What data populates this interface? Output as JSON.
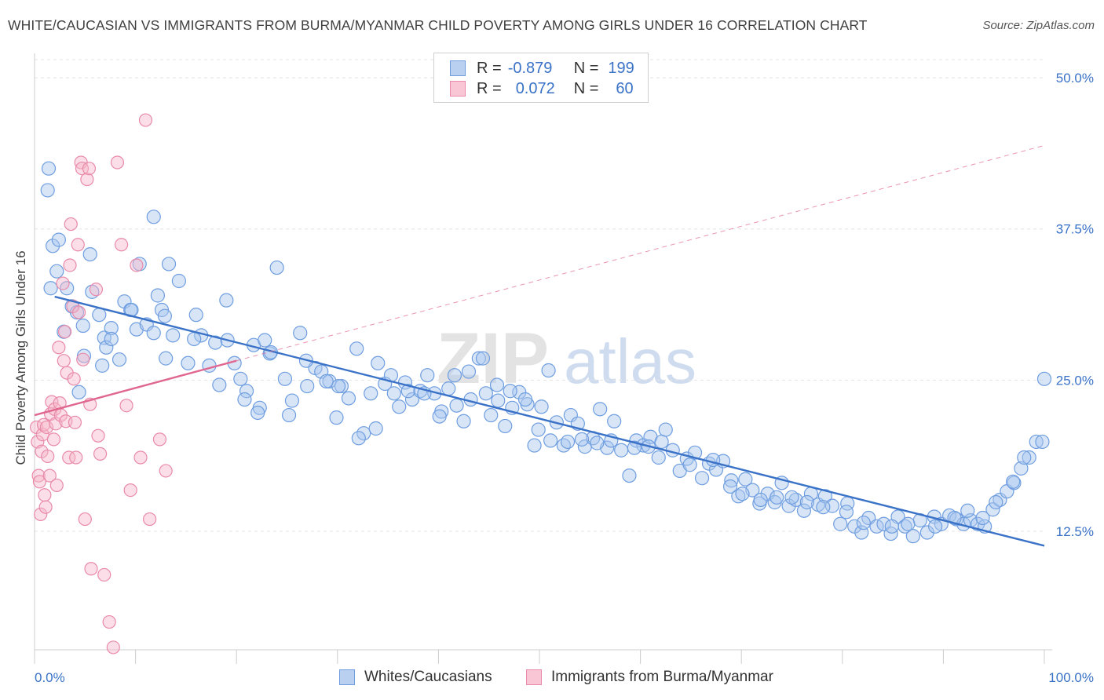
{
  "title": "WHITE/CAUCASIAN VS IMMIGRANTS FROM BURMA/MYANMAR CHILD POVERTY AMONG GIRLS UNDER 16 CORRELATION CHART",
  "source": "Source: ZipAtlas.com",
  "watermark": {
    "zip": "ZIP",
    "atlas": "atlas"
  },
  "legend": {
    "rows": [
      {
        "r_label": "R =",
        "r_value": "-0.879",
        "n_label": "N =",
        "n_value": "199",
        "fill": "#b9d0f0",
        "stroke": "#6f9ee0"
      },
      {
        "r_label": "R =",
        "r_value": "0.072",
        "n_label": "N =",
        "n_value": "60",
        "fill": "#f8c6d5",
        "stroke": "#e98aaa"
      }
    ]
  },
  "bottom_legend": [
    {
      "label": "Whites/Caucasians",
      "fill": "#b9d0f0",
      "stroke": "#6f9ee0"
    },
    {
      "label": "Immigrants from Burma/Myanmar",
      "fill": "#f8c6d5",
      "stroke": "#e98aaa"
    }
  ],
  "chart_data": {
    "type": "scatter",
    "ylabel": "Child Poverty Among Girls Under 16",
    "xlim": [
      0,
      100
    ],
    "ylim": [
      2.7,
      51.5
    ],
    "x_tick_labels": [
      {
        "value": 0,
        "label": "0.0%"
      },
      {
        "value": 100,
        "label": "100.0%"
      }
    ],
    "y_tick_labels": [
      {
        "value": 12.5,
        "label": "12.5%"
      },
      {
        "value": 25.0,
        "label": "25.0%"
      },
      {
        "value": 37.5,
        "label": "37.5%"
      },
      {
        "value": 50.0,
        "label": "50.0%"
      }
    ],
    "grid": true,
    "colors": {
      "white": "#3a72c7",
      "burma": "#e06890",
      "tick_label": "#3a72c7"
    },
    "trendlines": [
      {
        "series": "Whites/Caucasians",
        "x": [
          2,
          100
        ],
        "y": [
          31.9,
          11.3
        ],
        "style": "solid"
      },
      {
        "series": "Immigrants from Burma/Myanmar",
        "x": [
          0,
          20
        ],
        "y": [
          22.1,
          26.6
        ],
        "style": "solid"
      },
      {
        "series": "Immigrants from Burma/Myanmar",
        "x": [
          20,
          100
        ],
        "y": [
          26.6,
          44.4
        ],
        "style": "dashed"
      }
    ],
    "series": [
      {
        "name": "Whites/Caucasians",
        "points": [
          [
            1.3,
            40.7
          ],
          [
            1.4,
            42.5
          ],
          [
            1.8,
            36.1
          ],
          [
            2.2,
            34.0
          ],
          [
            2.4,
            36.6
          ],
          [
            3.2,
            32.6
          ],
          [
            3.7,
            31.1
          ],
          [
            4.2,
            30.6
          ],
          [
            4.8,
            29.5
          ],
          [
            4.9,
            27.0
          ],
          [
            5.5,
            35.4
          ],
          [
            5.7,
            32.3
          ],
          [
            6.4,
            30.4
          ],
          [
            6.9,
            28.5
          ],
          [
            7.1,
            27.7
          ],
          [
            7.6,
            29.3
          ],
          [
            8.4,
            26.7
          ],
          [
            8.9,
            31.5
          ],
          [
            9.5,
            30.8
          ],
          [
            10.1,
            29.2
          ],
          [
            11.1,
            29.6
          ],
          [
            11.8,
            28.9
          ],
          [
            12.2,
            32.0
          ],
          [
            12.6,
            30.8
          ],
          [
            13.0,
            26.8
          ],
          [
            13.3,
            34.6
          ],
          [
            13.7,
            28.7
          ],
          [
            14.3,
            33.2
          ],
          [
            15.2,
            26.4
          ],
          [
            16.0,
            30.4
          ],
          [
            16.5,
            28.7
          ],
          [
            17.3,
            26.2
          ],
          [
            17.9,
            28.1
          ],
          [
            18.3,
            24.6
          ],
          [
            19.0,
            31.6
          ],
          [
            19.8,
            26.4
          ],
          [
            20.4,
            25.1
          ],
          [
            21.0,
            24.1
          ],
          [
            21.7,
            27.9
          ],
          [
            22.3,
            22.7
          ],
          [
            22.8,
            28.3
          ],
          [
            23.3,
            27.2
          ],
          [
            24.0,
            34.3
          ],
          [
            24.8,
            25.1
          ],
          [
            25.5,
            23.3
          ],
          [
            26.3,
            28.9
          ],
          [
            27.0,
            24.5
          ],
          [
            27.8,
            26.0
          ],
          [
            28.4,
            25.7
          ],
          [
            29.2,
            24.9
          ],
          [
            29.9,
            21.9
          ],
          [
            30.4,
            24.5
          ],
          [
            31.1,
            23.5
          ],
          [
            31.9,
            27.6
          ],
          [
            32.6,
            20.6
          ],
          [
            33.3,
            23.9
          ],
          [
            34.0,
            26.4
          ],
          [
            34.7,
            24.7
          ],
          [
            35.3,
            25.4
          ],
          [
            36.1,
            22.8
          ],
          [
            36.7,
            24.8
          ],
          [
            37.4,
            23.4
          ],
          [
            38.2,
            24.1
          ],
          [
            38.9,
            25.4
          ],
          [
            39.6,
            23.9
          ],
          [
            40.3,
            22.4
          ],
          [
            41.0,
            24.3
          ],
          [
            41.8,
            22.9
          ],
          [
            42.5,
            21.6
          ],
          [
            43.2,
            23.4
          ],
          [
            44.0,
            26.8
          ],
          [
            44.7,
            23.9
          ],
          [
            45.2,
            22.1
          ],
          [
            45.9,
            23.3
          ],
          [
            46.6,
            21.2
          ],
          [
            47.3,
            22.7
          ],
          [
            48.0,
            24.0
          ],
          [
            48.8,
            23.0
          ],
          [
            49.5,
            19.6
          ],
          [
            50.2,
            22.8
          ],
          [
            50.9,
            25.8
          ],
          [
            51.7,
            21.5
          ],
          [
            52.4,
            19.6
          ],
          [
            53.1,
            22.1
          ],
          [
            53.8,
            21.4
          ],
          [
            54.5,
            19.5
          ],
          [
            55.3,
            20.2
          ],
          [
            56.0,
            22.6
          ],
          [
            56.7,
            19.4
          ],
          [
            57.4,
            21.6
          ],
          [
            58.1,
            19.2
          ],
          [
            58.9,
            17.1
          ],
          [
            59.6,
            20.0
          ],
          [
            60.3,
            19.6
          ],
          [
            61.0,
            20.3
          ],
          [
            61.8,
            18.6
          ],
          [
            62.5,
            20.9
          ],
          [
            63.2,
            19.2
          ],
          [
            63.9,
            17.5
          ],
          [
            64.6,
            18.5
          ],
          [
            65.4,
            19.0
          ],
          [
            66.1,
            16.9
          ],
          [
            66.8,
            18.1
          ],
          [
            67.5,
            17.6
          ],
          [
            68.2,
            18.3
          ],
          [
            69.0,
            16.7
          ],
          [
            69.7,
            15.4
          ],
          [
            70.4,
            16.8
          ],
          [
            71.1,
            15.9
          ],
          [
            71.8,
            14.8
          ],
          [
            72.6,
            15.6
          ],
          [
            73.3,
            14.9
          ],
          [
            74.0,
            16.5
          ],
          [
            74.7,
            14.6
          ],
          [
            75.4,
            15.1
          ],
          [
            76.2,
            14.2
          ],
          [
            76.9,
            15.6
          ],
          [
            77.6,
            14.7
          ],
          [
            78.3,
            15.4
          ],
          [
            79.0,
            14.6
          ],
          [
            79.8,
            13.1
          ],
          [
            80.5,
            14.8
          ],
          [
            81.2,
            12.9
          ],
          [
            81.9,
            12.4
          ],
          [
            82.6,
            13.6
          ],
          [
            83.4,
            12.9
          ],
          [
            84.1,
            13.1
          ],
          [
            84.8,
            12.3
          ],
          [
            85.5,
            13.7
          ],
          [
            86.2,
            12.9
          ],
          [
            87.0,
            12.1
          ],
          [
            87.7,
            13.4
          ],
          [
            88.4,
            12.4
          ],
          [
            89.1,
            13.7
          ],
          [
            89.8,
            13.1
          ],
          [
            90.6,
            13.8
          ],
          [
            91.3,
            13.5
          ],
          [
            92.0,
            13.1
          ],
          [
            92.7,
            13.4
          ],
          [
            93.4,
            13.1
          ],
          [
            94.1,
            12.9
          ],
          [
            94.9,
            14.3
          ],
          [
            95.6,
            15.1
          ],
          [
            96.3,
            15.8
          ],
          [
            97.0,
            16.5
          ],
          [
            97.7,
            17.7
          ],
          [
            98.5,
            18.6
          ],
          [
            99.2,
            19.9
          ],
          [
            100.0,
            25.1
          ],
          [
            99.8,
            19.9
          ],
          [
            98.0,
            18.6
          ],
          [
            96.9,
            16.6
          ],
          [
            95.2,
            14.9
          ],
          [
            93.9,
            13.6
          ],
          [
            92.4,
            14.2
          ],
          [
            91.1,
            13.6
          ],
          [
            89.2,
            12.9
          ],
          [
            86.5,
            13.1
          ],
          [
            84.9,
            12.9
          ],
          [
            82.1,
            13.2
          ],
          [
            80.4,
            14.1
          ],
          [
            78.1,
            14.5
          ],
          [
            76.5,
            14.9
          ],
          [
            75.0,
            15.3
          ],
          [
            73.5,
            15.3
          ],
          [
            71.9,
            15.1
          ],
          [
            70.1,
            15.6
          ],
          [
            68.9,
            16.2
          ],
          [
            67.2,
            18.4
          ],
          [
            64.9,
            18.0
          ],
          [
            62.1,
            19.9
          ],
          [
            60.8,
            19.5
          ],
          [
            59.4,
            19.4
          ],
          [
            57.1,
            20.0
          ],
          [
            55.7,
            19.8
          ],
          [
            54.2,
            20.1
          ],
          [
            52.8,
            19.9
          ],
          [
            51.1,
            20.0
          ],
          [
            49.9,
            20.9
          ],
          [
            48.6,
            23.4
          ],
          [
            47.1,
            24.1
          ],
          [
            45.8,
            24.6
          ],
          [
            44.4,
            26.8
          ],
          [
            43.0,
            25.7
          ],
          [
            41.6,
            25.4
          ],
          [
            40.1,
            22.0
          ],
          [
            38.6,
            23.9
          ],
          [
            37.0,
            24.1
          ],
          [
            35.6,
            23.9
          ],
          [
            33.8,
            21.0
          ],
          [
            32.1,
            20.2
          ],
          [
            30.1,
            24.5
          ],
          [
            28.9,
            24.9
          ],
          [
            26.9,
            26.6
          ],
          [
            25.2,
            22.1
          ],
          [
            23.4,
            27.3
          ],
          [
            22.1,
            22.3
          ],
          [
            20.8,
            23.4
          ],
          [
            19.1,
            28.3
          ],
          [
            15.8,
            28.4
          ],
          [
            12.9,
            30.3
          ],
          [
            9.6,
            30.8
          ],
          [
            7.6,
            28.4
          ],
          [
            4.4,
            24.0
          ],
          [
            2.9,
            29.0
          ],
          [
            1.6,
            32.6
          ],
          [
            11.8,
            38.5
          ],
          [
            10.4,
            34.6
          ],
          [
            6.7,
            26.2
          ]
        ]
      },
      {
        "name": "Immigrants from Burma/Myanmar",
        "points": [
          [
            0.2,
            21.1
          ],
          [
            0.3,
            19.9
          ],
          [
            0.4,
            17.1
          ],
          [
            0.5,
            16.6
          ],
          [
            0.6,
            13.9
          ],
          [
            0.7,
            19.1
          ],
          [
            0.8,
            20.5
          ],
          [
            0.9,
            21.3
          ],
          [
            1.0,
            15.5
          ],
          [
            1.1,
            14.5
          ],
          [
            1.2,
            21.1
          ],
          [
            1.3,
            18.7
          ],
          [
            1.5,
            17.1
          ],
          [
            1.6,
            22.2
          ],
          [
            1.7,
            23.2
          ],
          [
            1.9,
            20.1
          ],
          [
            2.0,
            22.6
          ],
          [
            2.1,
            21.4
          ],
          [
            2.2,
            16.3
          ],
          [
            2.4,
            27.7
          ],
          [
            2.5,
            23.1
          ],
          [
            2.6,
            22.1
          ],
          [
            2.8,
            33.0
          ],
          [
            2.9,
            26.6
          ],
          [
            3.0,
            29.0
          ],
          [
            3.1,
            21.6
          ],
          [
            3.2,
            25.6
          ],
          [
            3.4,
            18.6
          ],
          [
            3.5,
            34.5
          ],
          [
            3.6,
            37.9
          ],
          [
            3.8,
            31.1
          ],
          [
            3.9,
            25.1
          ],
          [
            4.0,
            21.5
          ],
          [
            4.1,
            18.6
          ],
          [
            4.3,
            36.2
          ],
          [
            4.4,
            30.6
          ],
          [
            4.6,
            43.0
          ],
          [
            4.7,
            42.5
          ],
          [
            4.8,
            26.7
          ],
          [
            5.0,
            13.5
          ],
          [
            5.2,
            41.6
          ],
          [
            5.4,
            42.5
          ],
          [
            5.5,
            23.0
          ],
          [
            5.6,
            9.4
          ],
          [
            6.1,
            32.5
          ],
          [
            6.3,
            20.4
          ],
          [
            6.5,
            18.9
          ],
          [
            6.9,
            8.9
          ],
          [
            7.4,
            5.0
          ],
          [
            7.8,
            2.9
          ],
          [
            8.2,
            43.0
          ],
          [
            8.6,
            36.2
          ],
          [
            9.1,
            22.9
          ],
          [
            9.5,
            15.9
          ],
          [
            10.1,
            34.5
          ],
          [
            10.5,
            18.6
          ],
          [
            11.0,
            46.5
          ],
          [
            11.4,
            13.5
          ],
          [
            12.4,
            20.1
          ],
          [
            13.0,
            17.5
          ]
        ]
      }
    ]
  }
}
